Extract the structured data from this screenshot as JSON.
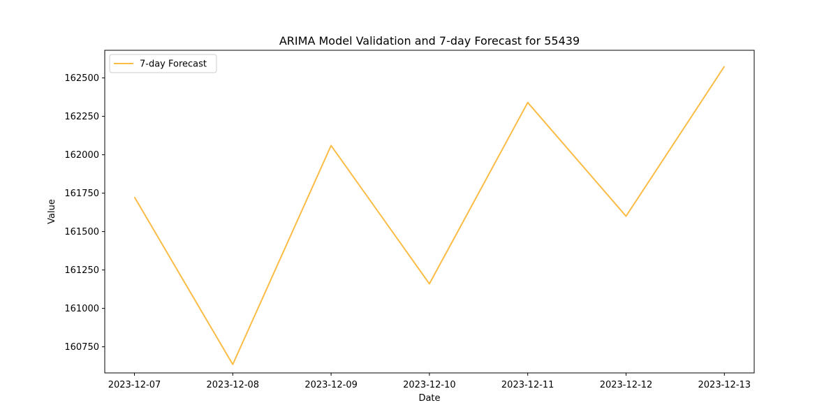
{
  "chart_data": {
    "type": "line",
    "title": "ARIMA Model Validation and 7-day Forecast for 55439",
    "xlabel": "Date",
    "ylabel": "Value",
    "x": [
      "2023-12-07",
      "2023-12-08",
      "2023-12-09",
      "2023-12-10",
      "2023-12-11",
      "2023-12-12",
      "2023-12-13"
    ],
    "series": [
      {
        "name": "7-day Forecast",
        "color": "#fbbc45",
        "values": [
          161725,
          160635,
          162060,
          161160,
          162340,
          161600,
          162575
        ]
      }
    ],
    "ylim": [
      160580,
      162680
    ],
    "yticks": [
      160750,
      161000,
      161250,
      161500,
      161750,
      162000,
      162250,
      162500
    ],
    "ytick_labels": [
      "160750",
      "161000",
      "161250",
      "161500",
      "161750",
      "162000",
      "162250",
      "162500"
    ],
    "legend_position": "upper-left",
    "grid": false
  }
}
